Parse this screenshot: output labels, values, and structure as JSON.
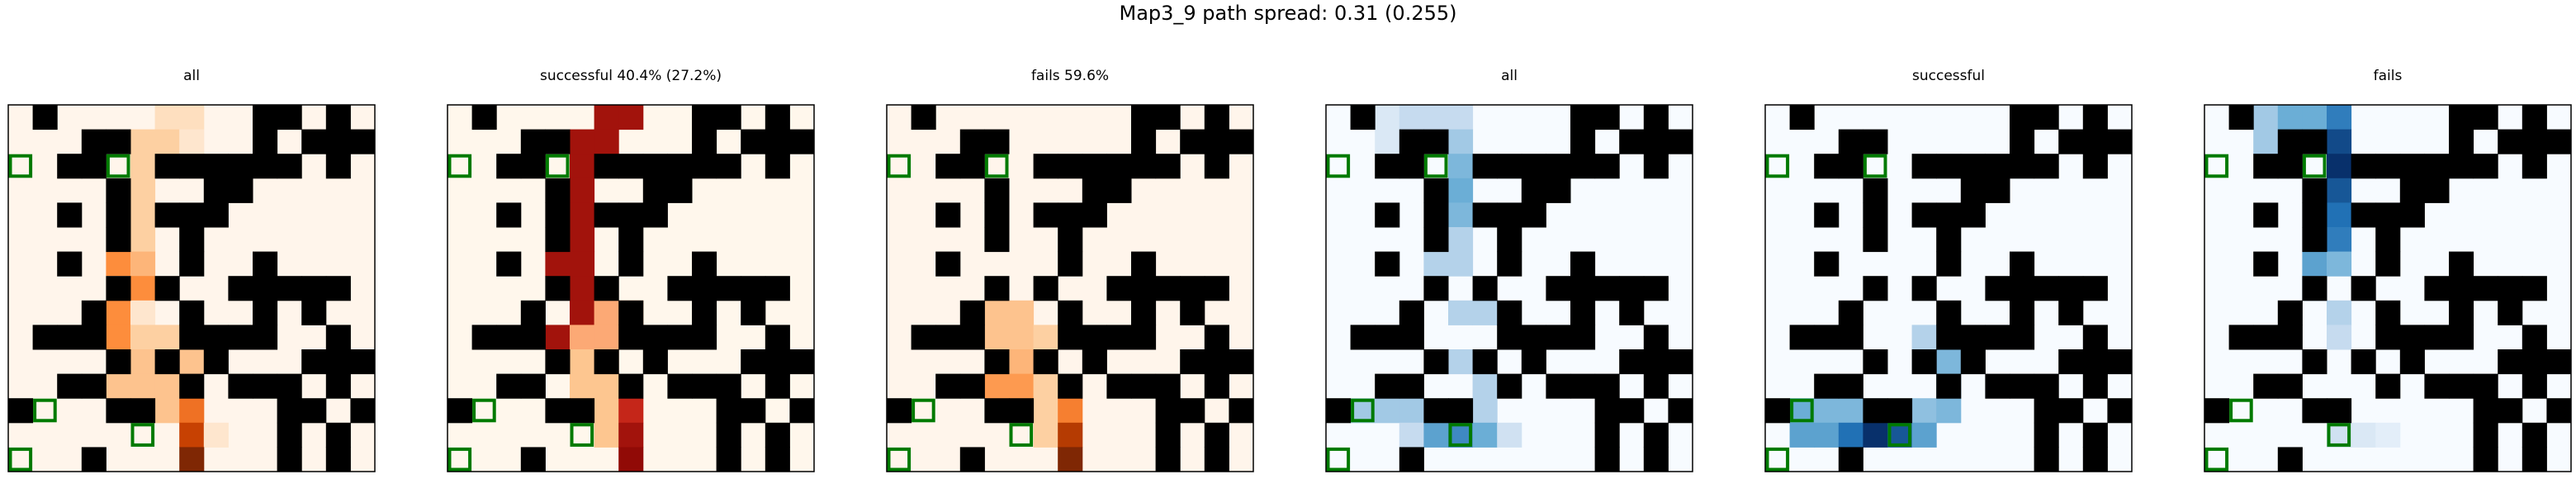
{
  "suptitle": "Map3_9 path spread: 0.31 (0.255)",
  "chart_data": [
    {
      "type": "heatmap",
      "title": "all",
      "colormap": "Oranges",
      "grid_size": [
        15,
        15
      ],
      "walls": [
        [
          0,
          1
        ],
        [
          0,
          10
        ],
        [
          0,
          11
        ],
        [
          0,
          13
        ],
        [
          1,
          3
        ],
        [
          1,
          4
        ],
        [
          1,
          10
        ],
        [
          1,
          12
        ],
        [
          1,
          13
        ],
        [
          1,
          14
        ],
        [
          2,
          2
        ],
        [
          2,
          3
        ],
        [
          2,
          6
        ],
        [
          2,
          7
        ],
        [
          2,
          8
        ],
        [
          2,
          9
        ],
        [
          2,
          10
        ],
        [
          2,
          11
        ],
        [
          2,
          13
        ],
        [
          3,
          4
        ],
        [
          3,
          8
        ],
        [
          3,
          9
        ],
        [
          4,
          2
        ],
        [
          4,
          4
        ],
        [
          4,
          6
        ],
        [
          4,
          7
        ],
        [
          4,
          8
        ],
        [
          5,
          4
        ],
        [
          5,
          7
        ],
        [
          6,
          2
        ],
        [
          6,
          7
        ],
        [
          6,
          10
        ],
        [
          7,
          4
        ],
        [
          7,
          6
        ],
        [
          7,
          9
        ],
        [
          7,
          10
        ],
        [
          7,
          11
        ],
        [
          7,
          12
        ],
        [
          7,
          13
        ],
        [
          8,
          3
        ],
        [
          8,
          7
        ],
        [
          8,
          10
        ],
        [
          8,
          12
        ],
        [
          9,
          1
        ],
        [
          9,
          2
        ],
        [
          9,
          3
        ],
        [
          9,
          7
        ],
        [
          9,
          8
        ],
        [
          9,
          9
        ],
        [
          9,
          10
        ],
        [
          9,
          13
        ],
        [
          10,
          4
        ],
        [
          10,
          6
        ],
        [
          10,
          8
        ],
        [
          10,
          12
        ],
        [
          10,
          13
        ],
        [
          10,
          14
        ],
        [
          11,
          2
        ],
        [
          11,
          3
        ],
        [
          11,
          7
        ],
        [
          11,
          9
        ],
        [
          11,
          10
        ],
        [
          11,
          11
        ],
        [
          11,
          13
        ],
        [
          12,
          0
        ],
        [
          12,
          4
        ],
        [
          12,
          5
        ],
        [
          12,
          11
        ],
        [
          12,
          12
        ],
        [
          12,
          14
        ],
        [
          13,
          11
        ],
        [
          13,
          13
        ],
        [
          14,
          3
        ],
        [
          14,
          11
        ],
        [
          14,
          13
        ]
      ],
      "goals": [
        [
          2,
          0
        ],
        [
          2,
          4
        ],
        [
          12,
          1
        ],
        [
          13,
          5
        ],
        [
          14,
          0
        ]
      ],
      "cells": [
        [
          0,
          6,
          0.15
        ],
        [
          0,
          7,
          0.15
        ],
        [
          1,
          5,
          0.25
        ],
        [
          1,
          6,
          0.25
        ],
        [
          1,
          7,
          0.1
        ],
        [
          2,
          5,
          0.25
        ],
        [
          3,
          5,
          0.25
        ],
        [
          4,
          5,
          0.25
        ],
        [
          5,
          5,
          0.25
        ],
        [
          6,
          4,
          0.5
        ],
        [
          6,
          5,
          0.35
        ],
        [
          7,
          4,
          0.0
        ],
        [
          7,
          5,
          0.5
        ],
        [
          8,
          4,
          0.5
        ],
        [
          8,
          5,
          0.1
        ],
        [
          9,
          4,
          0.5
        ],
        [
          9,
          5,
          0.25
        ],
        [
          9,
          6,
          0.25
        ],
        [
          10,
          5,
          0.3
        ],
        [
          10,
          7,
          0.3
        ],
        [
          11,
          4,
          0.3
        ],
        [
          11,
          5,
          0.3
        ],
        [
          11,
          6,
          0.3
        ],
        [
          12,
          6,
          0.3
        ],
        [
          12,
          7,
          0.6
        ],
        [
          13,
          7,
          0.8
        ],
        [
          13,
          8,
          0.1
        ],
        [
          14,
          7,
          1.0
        ]
      ]
    },
    {
      "type": "heatmap",
      "title": "successful 40.4% (27.2%)",
      "colormap": "OrRd",
      "grid_size": [
        15,
        15
      ],
      "goals": [
        [
          2,
          0
        ],
        [
          2,
          4
        ],
        [
          12,
          1
        ],
        [
          13,
          5
        ],
        [
          14,
          0
        ]
      ],
      "cells": [
        [
          0,
          6,
          0.9
        ],
        [
          0,
          7,
          0.9
        ],
        [
          1,
          6,
          0.9
        ],
        [
          1,
          5,
          0.9
        ],
        [
          2,
          5,
          0.9
        ],
        [
          3,
          5,
          0.9
        ],
        [
          4,
          5,
          0.9
        ],
        [
          5,
          5,
          0.9
        ],
        [
          6,
          5,
          0.9
        ],
        [
          6,
          4,
          0.9
        ],
        [
          7,
          5,
          0.9
        ],
        [
          8,
          5,
          0.9
        ],
        [
          8,
          6,
          0.4
        ],
        [
          8,
          7,
          0.4
        ],
        [
          9,
          4,
          0.9
        ],
        [
          9,
          5,
          0.4
        ],
        [
          9,
          6,
          0.4
        ],
        [
          10,
          5,
          0.3
        ],
        [
          10,
          6,
          0.3
        ],
        [
          11,
          5,
          0.3
        ],
        [
          11,
          6,
          0.3
        ],
        [
          12,
          6,
          0.3
        ],
        [
          12,
          7,
          0.8
        ],
        [
          13,
          6,
          0.3
        ],
        [
          13,
          7,
          0.9
        ],
        [
          14,
          7,
          0.95
        ]
      ]
    },
    {
      "type": "heatmap",
      "title": "fails 59.6%",
      "colormap": "Oranges",
      "grid_size": [
        15,
        15
      ],
      "goals": [
        [
          2,
          0
        ],
        [
          2,
          4
        ],
        [
          12,
          1
        ],
        [
          13,
          5
        ],
        [
          14,
          0
        ]
      ],
      "cells": [
        [
          8,
          4,
          0.3
        ],
        [
          8,
          5,
          0.3
        ],
        [
          9,
          4,
          0.3
        ],
        [
          9,
          5,
          0.3
        ],
        [
          9,
          6,
          0.25
        ],
        [
          10,
          5,
          0.35
        ],
        [
          10,
          6,
          0.25
        ],
        [
          11,
          4,
          0.45
        ],
        [
          11,
          5,
          0.45
        ],
        [
          11,
          6,
          0.25
        ],
        [
          12,
          6,
          0.25
        ],
        [
          12,
          7,
          0.55
        ],
        [
          13,
          6,
          0.25
        ],
        [
          13,
          7,
          0.85
        ],
        [
          14,
          7,
          1.0
        ]
      ]
    },
    {
      "type": "heatmap",
      "title": "all",
      "colormap": "Blues",
      "grid_size": [
        15,
        15
      ],
      "goals": [
        [
          2,
          0
        ],
        [
          2,
          4
        ],
        [
          12,
          1
        ],
        [
          13,
          5
        ],
        [
          14,
          0
        ]
      ],
      "cells": [
        [
          0,
          2,
          0.15
        ],
        [
          0,
          3,
          0.25
        ],
        [
          0,
          4,
          0.25
        ],
        [
          0,
          5,
          0.25
        ],
        [
          1,
          2,
          0.15
        ],
        [
          1,
          5,
          0.35
        ],
        [
          2,
          5,
          0.45
        ],
        [
          3,
          5,
          0.5
        ],
        [
          4,
          5,
          0.45
        ],
        [
          5,
          5,
          0.3
        ],
        [
          6,
          4,
          0.3
        ],
        [
          6,
          5,
          0.3
        ],
        [
          8,
          5,
          0.3
        ],
        [
          8,
          6,
          0.3
        ],
        [
          10,
          5,
          0.3
        ],
        [
          10,
          6,
          0.3
        ],
        [
          11,
          6,
          0.3
        ],
        [
          12,
          1,
          0.35
        ],
        [
          12,
          2,
          0.35
        ],
        [
          12,
          3,
          0.35
        ],
        [
          12,
          4,
          0.25
        ],
        [
          12,
          5,
          0.3
        ],
        [
          12,
          6,
          0.3
        ],
        [
          13,
          3,
          0.25
        ],
        [
          13,
          4,
          0.55
        ],
        [
          13,
          5,
          0.65
        ],
        [
          13,
          6,
          0.5
        ],
        [
          13,
          7,
          0.2
        ]
      ]
    },
    {
      "type": "heatmap",
      "title": "successful",
      "colormap": "Blues",
      "grid_size": [
        15,
        15
      ],
      "goals": [
        [
          2,
          0
        ],
        [
          2,
          4
        ],
        [
          12,
          1
        ],
        [
          13,
          5
        ],
        [
          14,
          0
        ]
      ],
      "cells": [
        [
          9,
          6,
          0.3
        ],
        [
          9,
          7,
          0.3
        ],
        [
          10,
          7,
          0.45
        ],
        [
          11,
          7,
          0.45
        ],
        [
          12,
          1,
          0.5
        ],
        [
          12,
          2,
          0.45
        ],
        [
          12,
          3,
          0.45
        ],
        [
          12,
          4,
          0.3
        ],
        [
          12,
          6,
          0.4
        ],
        [
          12,
          7,
          0.45
        ],
        [
          13,
          1,
          0.55
        ],
        [
          13,
          2,
          0.55
        ],
        [
          13,
          3,
          0.75
        ],
        [
          13,
          4,
          1.0
        ],
        [
          13,
          5,
          0.85
        ],
        [
          13,
          6,
          0.55
        ]
      ]
    },
    {
      "type": "heatmap",
      "title": "fails",
      "colormap": "Blues",
      "grid_size": [
        15,
        15
      ],
      "goals": [
        [
          2,
          0
        ],
        [
          2,
          4
        ],
        [
          12,
          1
        ],
        [
          13,
          5
        ],
        [
          14,
          0
        ]
      ],
      "cells": [
        [
          0,
          2,
          0.35
        ],
        [
          0,
          3,
          0.5
        ],
        [
          0,
          4,
          0.5
        ],
        [
          0,
          5,
          0.7
        ],
        [
          1,
          2,
          0.35
        ],
        [
          1,
          5,
          0.9
        ],
        [
          2,
          5,
          1.0
        ],
        [
          3,
          5,
          0.85
        ],
        [
          4,
          5,
          0.75
        ],
        [
          5,
          5,
          0.7
        ],
        [
          6,
          4,
          0.55
        ],
        [
          6,
          5,
          0.45
        ],
        [
          7,
          4,
          0.35
        ],
        [
          8,
          5,
          0.3
        ],
        [
          9,
          5,
          0.25
        ],
        [
          13,
          5,
          0.2
        ],
        [
          13,
          6,
          0.15
        ],
        [
          13,
          7,
          0.1
        ]
      ]
    }
  ]
}
